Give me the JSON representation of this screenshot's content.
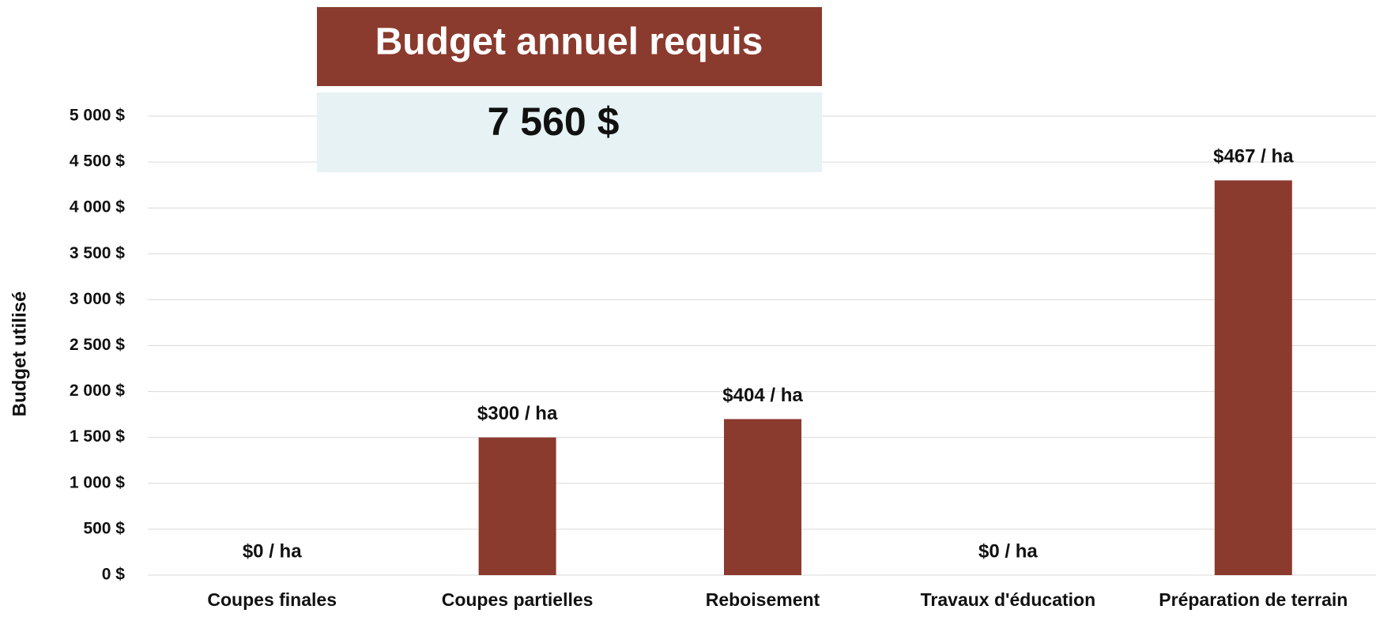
{
  "chart_data": {
    "type": "bar",
    "summary": {
      "title": "Budget annuel requis",
      "value": "7 560 $"
    },
    "ylabel": "Budget utilisé",
    "categories": [
      "Coupes finales",
      "Coupes partielles",
      "Reboisement",
      "Travaux d'éducation",
      "Préparation de terrain"
    ],
    "values": [
      0,
      1500,
      1700,
      0,
      4300
    ],
    "annotations": [
      "$0 / ha",
      "$300 / ha",
      "$404 / ha",
      "$0 / ha",
      "$467 / ha"
    ],
    "color": "#8b3a2e",
    "ylim": [
      0,
      5000
    ],
    "yticks": [
      {
        "value": 0,
        "label": "0 $"
      },
      {
        "value": 500,
        "label": "500 $"
      },
      {
        "value": 1000,
        "label": "1 000 $"
      },
      {
        "value": 1500,
        "label": "1 500 $"
      },
      {
        "value": 2000,
        "label": "2 000 $"
      },
      {
        "value": 2500,
        "label": "2 500 $"
      },
      {
        "value": 3000,
        "label": "3 000 $"
      },
      {
        "value": 3500,
        "label": "3 500 $"
      },
      {
        "value": 4000,
        "label": "4 000 $"
      },
      {
        "value": 4500,
        "label": "4 500 $"
      },
      {
        "value": 5000,
        "label": "5 000 $"
      }
    ],
    "grid": true
  }
}
